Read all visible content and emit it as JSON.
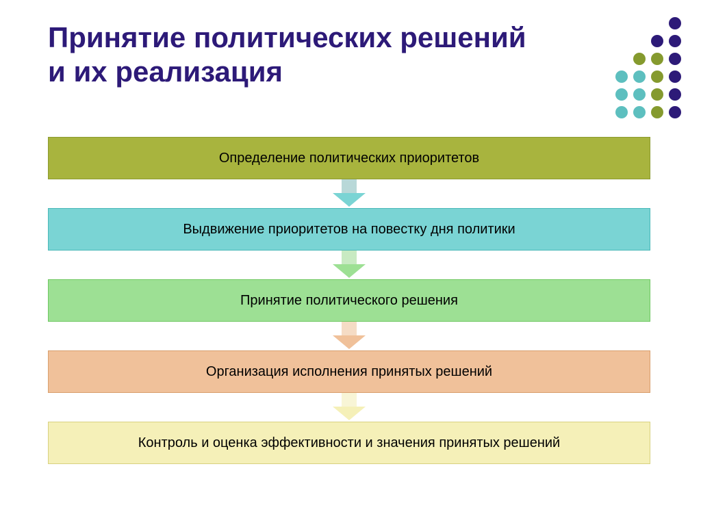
{
  "title": {
    "text": "Принятие политических решений и их реализация",
    "color": "#2d1a78",
    "fontsize": 42
  },
  "dotGrid": {
    "rows": 6,
    "cols": 4,
    "colors": [
      [
        "transparent",
        "transparent",
        "transparent",
        "#2d1a78"
      ],
      [
        "transparent",
        "transparent",
        "#2d1a78",
        "#2d1a78"
      ],
      [
        "transparent",
        "#859a2e",
        "#859a2e",
        "#2d1a78"
      ],
      [
        "#5dbfbf",
        "#5dbfbf",
        "#859a2e",
        "#2d1a78"
      ],
      [
        "#5dbfbf",
        "#5dbfbf",
        "#859a2e",
        "#2d1a78"
      ],
      [
        "#5dbfbf",
        "#5dbfbf",
        "#859a2e",
        "#2d1a78"
      ]
    ]
  },
  "flow": {
    "text_color": "#000000",
    "fontsize": 20,
    "boxes": [
      {
        "label": "Определение политических приоритетов",
        "bg": "#a8b43e",
        "border": "#8b9a2e"
      },
      {
        "label": "Выдвижение приоритетов на повестку дня политики",
        "bg": "#7ad4d4",
        "border": "#4ab8b8"
      },
      {
        "label": "Принятие политического решения",
        "bg": "#9de094",
        "border": "#6fc762"
      },
      {
        "label": "Организация исполнения принятых решений",
        "bg": "#f0c19a",
        "border": "#d89f6d"
      },
      {
        "label": "Контроль и оценка эффективности и значения принятых решений",
        "bg": "#f5f0b8",
        "border": "#d8d180"
      }
    ],
    "arrows": [
      {
        "stem": "#b8d8d8",
        "head": "#7ad4d4"
      },
      {
        "stem": "#c8eac2",
        "head": "#9de094"
      },
      {
        "stem": "#f5dcc5",
        "head": "#f0c19a"
      },
      {
        "stem": "#f8f5d6",
        "head": "#f5f0b8"
      }
    ]
  }
}
